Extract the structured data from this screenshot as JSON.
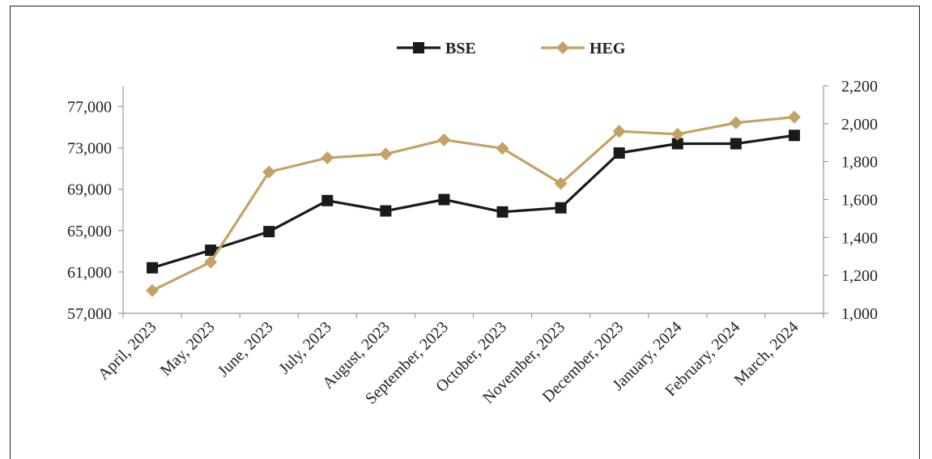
{
  "chart_data": {
    "type": "line",
    "categories": [
      "April, 2023",
      "May, 2023",
      "June, 2023",
      "July, 2023",
      "August, 2023",
      "September, 2023",
      "October, 2023",
      "November, 2023",
      "December, 2023",
      "January, 2024",
      "February, 2024",
      "March, 2024"
    ],
    "series": [
      {
        "name": "BSE",
        "axis": "left",
        "color": "#1a1a1a",
        "marker": "square",
        "values": [
          61400,
          63100,
          64900,
          67900,
          66900,
          68000,
          66800,
          67200,
          72500,
          73400,
          73400,
          74200
        ]
      },
      {
        "name": "HEG",
        "axis": "right",
        "color": "#c4a265",
        "marker": "diamond",
        "values": [
          1120,
          1270,
          1745,
          1820,
          1840,
          1915,
          1870,
          1685,
          1960,
          1945,
          2005,
          2035
        ]
      }
    ],
    "y_left": {
      "min": 57000,
      "max": 79000,
      "ticks": [
        "57,000",
        "61,000",
        "65,000",
        "69,000",
        "73,000",
        "77,000"
      ],
      "tick_values": [
        57000,
        61000,
        65000,
        69000,
        73000,
        77000
      ]
    },
    "y_right": {
      "min": 1000,
      "max": 2200,
      "ticks": [
        "1,000",
        "1,200",
        "1,400",
        "1,600",
        "1,800",
        "2,000",
        "2,200"
      ],
      "tick_values": [
        1000,
        1200,
        1400,
        1600,
        1800,
        2000,
        2200
      ]
    },
    "legend": {
      "position": "top-center",
      "items": [
        "BSE",
        "HEG"
      ]
    },
    "grid": false
  }
}
